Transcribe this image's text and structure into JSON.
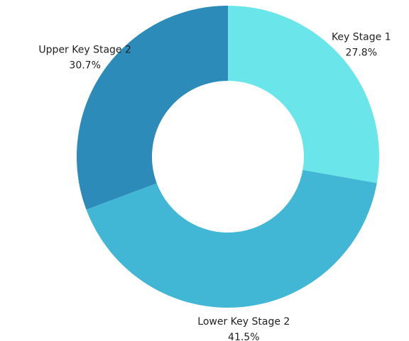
{
  "chart_data": {
    "type": "donut",
    "categories": [
      "Key Stage 1",
      "Lower Key Stage 2",
      "Upper Key Stage 2"
    ],
    "values": [
      27.8,
      41.5,
      30.7
    ],
    "value_labels": [
      "27.8%",
      "41.5%",
      "30.7%"
    ],
    "colors": [
      "#6ae5e9",
      "#42b7d5",
      "#2d8bba"
    ]
  }
}
